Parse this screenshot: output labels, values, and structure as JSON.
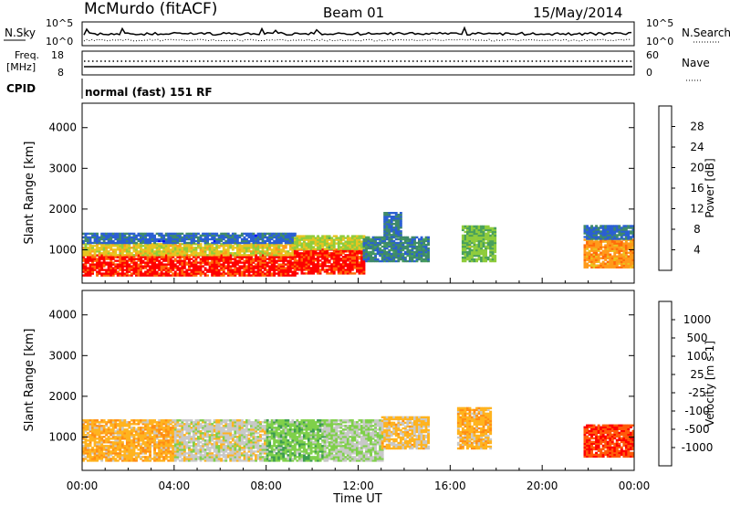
{
  "header": {
    "station": "McMurdo (fitACF)",
    "beam": "Beam 01",
    "date": "15/May/2014"
  },
  "sky_panel": {
    "left_label": "N.Sky",
    "left_ticks": [
      "10^5",
      "10^0"
    ],
    "right_label": "N.Search",
    "right_ticks": [
      "10^5",
      "10^0"
    ]
  },
  "freq_panel": {
    "left_label_line1": "Freq.",
    "left_label_line2": "[MHz]",
    "left_ticks": [
      "18",
      "8"
    ],
    "right_label": "Nave",
    "right_ticks": [
      "60",
      "0"
    ]
  },
  "cpid_panel": {
    "label": "CPID",
    "text": "normal (fast) 151 RF"
  },
  "colors": {
    "power_scale": [
      "#0000ff",
      "#2b5fd3",
      "#3f8a6a",
      "#49a05c",
      "#8fcc3c",
      "#e8c420",
      "#ff9a1a",
      "#ff6a0a",
      "#ff0000"
    ],
    "velocity_scale": [
      "#ff0000",
      "#ff5a0a",
      "#ff8c14",
      "#ffb31f",
      "#c8c8c8",
      "#7fd04a",
      "#3c9b52",
      "#3b63c8",
      "#2424c8"
    ]
  },
  "chart_data": [
    {
      "type": "heatmap",
      "title": "",
      "xlabel": "Time UT",
      "ylabel": "Slant Range [km]",
      "x_ticks": [
        "00:00",
        "04:00",
        "08:00",
        "12:00",
        "16:00",
        "20:00",
        "00:00"
      ],
      "y_ticks": [
        "1000",
        "2000",
        "3000",
        "4000"
      ],
      "xlim_hours": [
        0,
        24
      ],
      "ylim_km": [
        180,
        4600
      ],
      "colorbar": {
        "label": "Power [dB]",
        "ticks": [
          "4",
          "8",
          "12",
          "16",
          "20",
          "24",
          "28"
        ],
        "range": [
          0,
          30
        ]
      },
      "regions": [
        {
          "t0": 0.0,
          "t1": 9.2,
          "r0": 350,
          "r1": 850,
          "value": 28
        },
        {
          "t0": 0.0,
          "t1": 9.2,
          "r0": 850,
          "r1": 1150,
          "value": 18
        },
        {
          "t0": 0.0,
          "t1": 9.2,
          "r0": 1150,
          "r1": 1400,
          "value": 6
        },
        {
          "t0": 9.2,
          "t1": 12.2,
          "r0": 400,
          "r1": 1000,
          "value": 28
        },
        {
          "t0": 9.2,
          "t1": 12.2,
          "r0": 1000,
          "r1": 1350,
          "value": 16
        },
        {
          "t0": 12.2,
          "t1": 15.0,
          "r0": 700,
          "r1": 1300,
          "value": 8
        },
        {
          "t0": 13.1,
          "t1": 13.8,
          "r0": 1300,
          "r1": 1900,
          "value": 6
        },
        {
          "t0": 16.5,
          "t1": 18.0,
          "r0": 700,
          "r1": 1600,
          "value": 14
        },
        {
          "t0": 21.8,
          "t1": 24.0,
          "r0": 550,
          "r1": 1250,
          "value": 22
        },
        {
          "t0": 21.8,
          "t1": 24.0,
          "r0": 1250,
          "r1": 1600,
          "value": 6
        }
      ]
    },
    {
      "type": "heatmap",
      "title": "",
      "xlabel": "Time UT",
      "ylabel": "Slant Range [km]",
      "x_ticks": [
        "00:00",
        "04:00",
        "08:00",
        "12:00",
        "16:00",
        "20:00",
        "00:00"
      ],
      "y_ticks": [
        "1000",
        "2000",
        "3000",
        "4000"
      ],
      "xlim_hours": [
        0,
        24
      ],
      "ylim_km": [
        180,
        4600
      ],
      "colorbar": {
        "label": "Velocity [m s-1]",
        "ticks": [
          "-1000",
          "-500",
          "-100",
          "-25",
          "25",
          "100",
          "500",
          "1000"
        ],
        "range": [
          -1200,
          1200
        ]
      },
      "regions": [
        {
          "t0": 0.0,
          "t1": 4.0,
          "r0": 400,
          "r1": 1400,
          "value": -300
        },
        {
          "t0": 4.0,
          "t1": 8.0,
          "r0": 400,
          "r1": 1400,
          "value": 0
        },
        {
          "t0": 8.0,
          "t1": 10.5,
          "r0": 400,
          "r1": 1400,
          "value": 300
        },
        {
          "t0": 10.5,
          "t1": 13.0,
          "r0": 400,
          "r1": 1400,
          "value": 120
        },
        {
          "t0": 13.0,
          "t1": 15.0,
          "r0": 700,
          "r1": 1500,
          "value": -200
        },
        {
          "t0": 16.3,
          "t1": 17.8,
          "r0": 700,
          "r1": 1700,
          "value": -300
        },
        {
          "t0": 21.8,
          "t1": 24.0,
          "r0": 500,
          "r1": 1300,
          "value": -900
        }
      ]
    }
  ]
}
